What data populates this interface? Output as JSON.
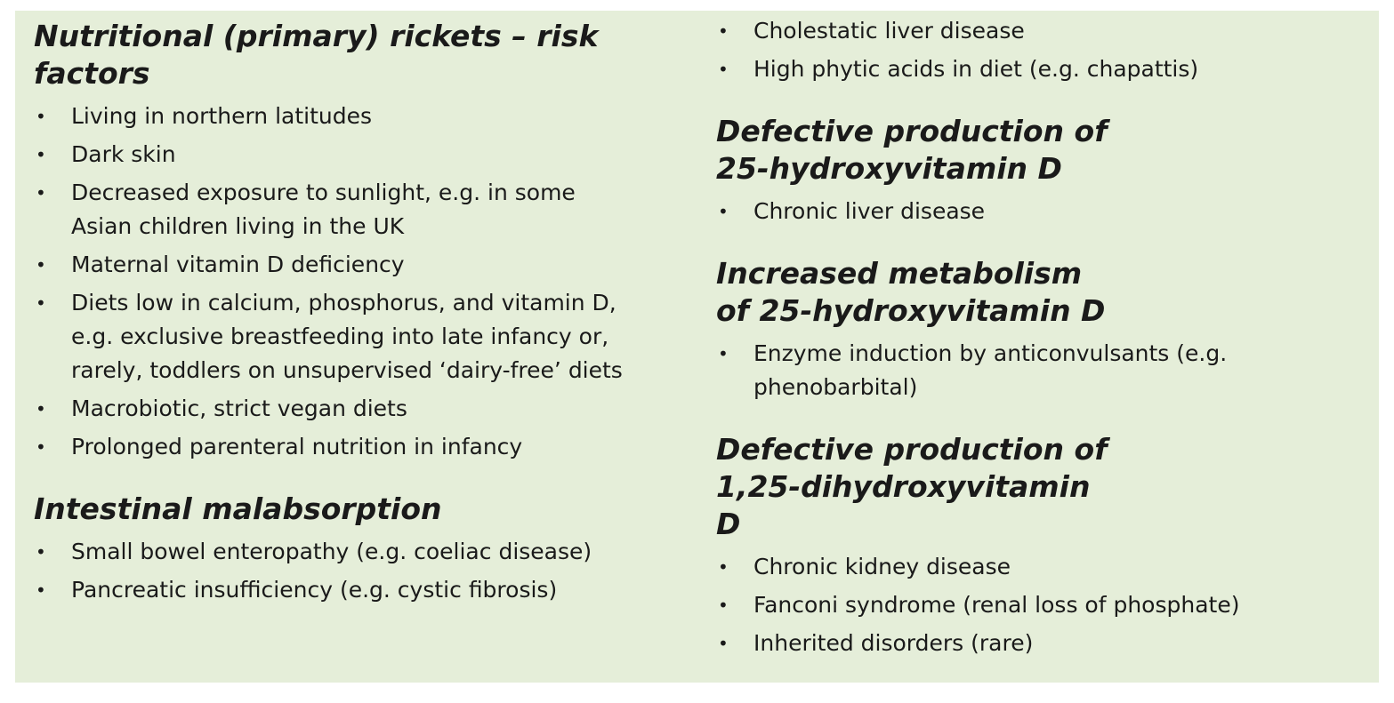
{
  "left": [
    {
      "heading": "Nutritional (primary) rickets – risk factors",
      "items": [
        "Living in northern latitudes",
        "Dark skin",
        "Decreased exposure to sunlight, e.g. in some Asian children living in the UK",
        "Maternal vitamin D deficiency",
        "Diets low in calcium, phosphorus, and vitamin D, e.g. exclusive breastfeeding into late infancy or, rarely, toddlers on unsupervised ‘dairy-free’ diets",
        "Macrobiotic, strict vegan diets",
        "Prolonged parenteral nutrition in infancy"
      ]
    },
    {
      "heading": "Intestinal malabsorption",
      "items": [
        "Small bowel enteropathy (e.g. coeliac disease)",
        "Pancreatic insufficiency (e.g. cystic fibrosis)"
      ]
    }
  ],
  "right": [
    {
      "items": [
        "Cholestatic liver disease",
        "High phytic acids in diet (e.g. chapattis)"
      ]
    },
    {
      "heading": "Defective production of 25-hydroxyvitamin D",
      "items": [
        "Chronic liver disease"
      ]
    },
    {
      "heading": "Increased metabolism of 25-hydroxyvitamin D",
      "items": [
        "Enzyme induction by anticonvulsants (e.g. phenobarbital)"
      ]
    },
    {
      "heading": "Defective production of 1,25-dihydroxyvitamin D",
      "items": [
        "Chronic kidney disease",
        "Fanconi syndrome (renal loss of phosphate)",
        "Inherited disorders (rare)"
      ]
    }
  ]
}
